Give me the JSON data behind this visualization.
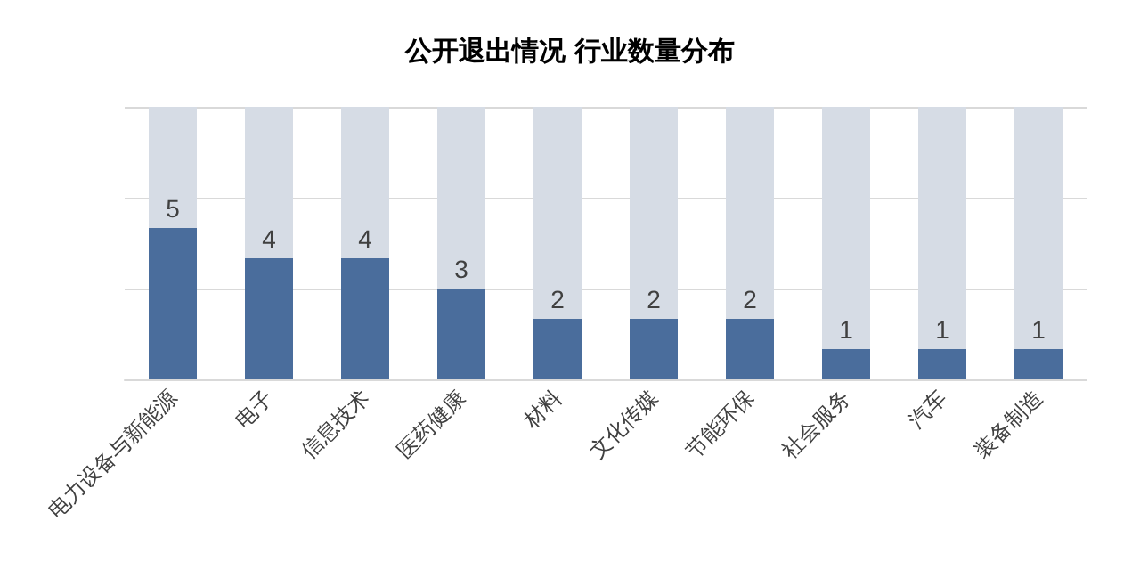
{
  "chart_data": {
    "type": "bar",
    "title": "公开退出情况 行业数量分布",
    "categories": [
      "电力设备与新能源",
      "电子",
      "信息技术",
      "医药健康",
      "材料",
      "文化传媒",
      "节能环保",
      "社会服务",
      "汽车",
      "装备制造"
    ],
    "values": [
      5,
      4,
      4,
      3,
      2,
      2,
      2,
      1,
      1,
      1
    ],
    "color": "#4a6d9c",
    "ylim": [
      0,
      9
    ],
    "yticks": [
      {
        "value": 0,
        "label": null
      },
      {
        "value": 3,
        "label": null
      },
      {
        "value": 6,
        "label": null
      },
      {
        "value": 9,
        "label": null
      }
    ],
    "grid": "y",
    "tick_labels": "x",
    "data_labels": true
  }
}
